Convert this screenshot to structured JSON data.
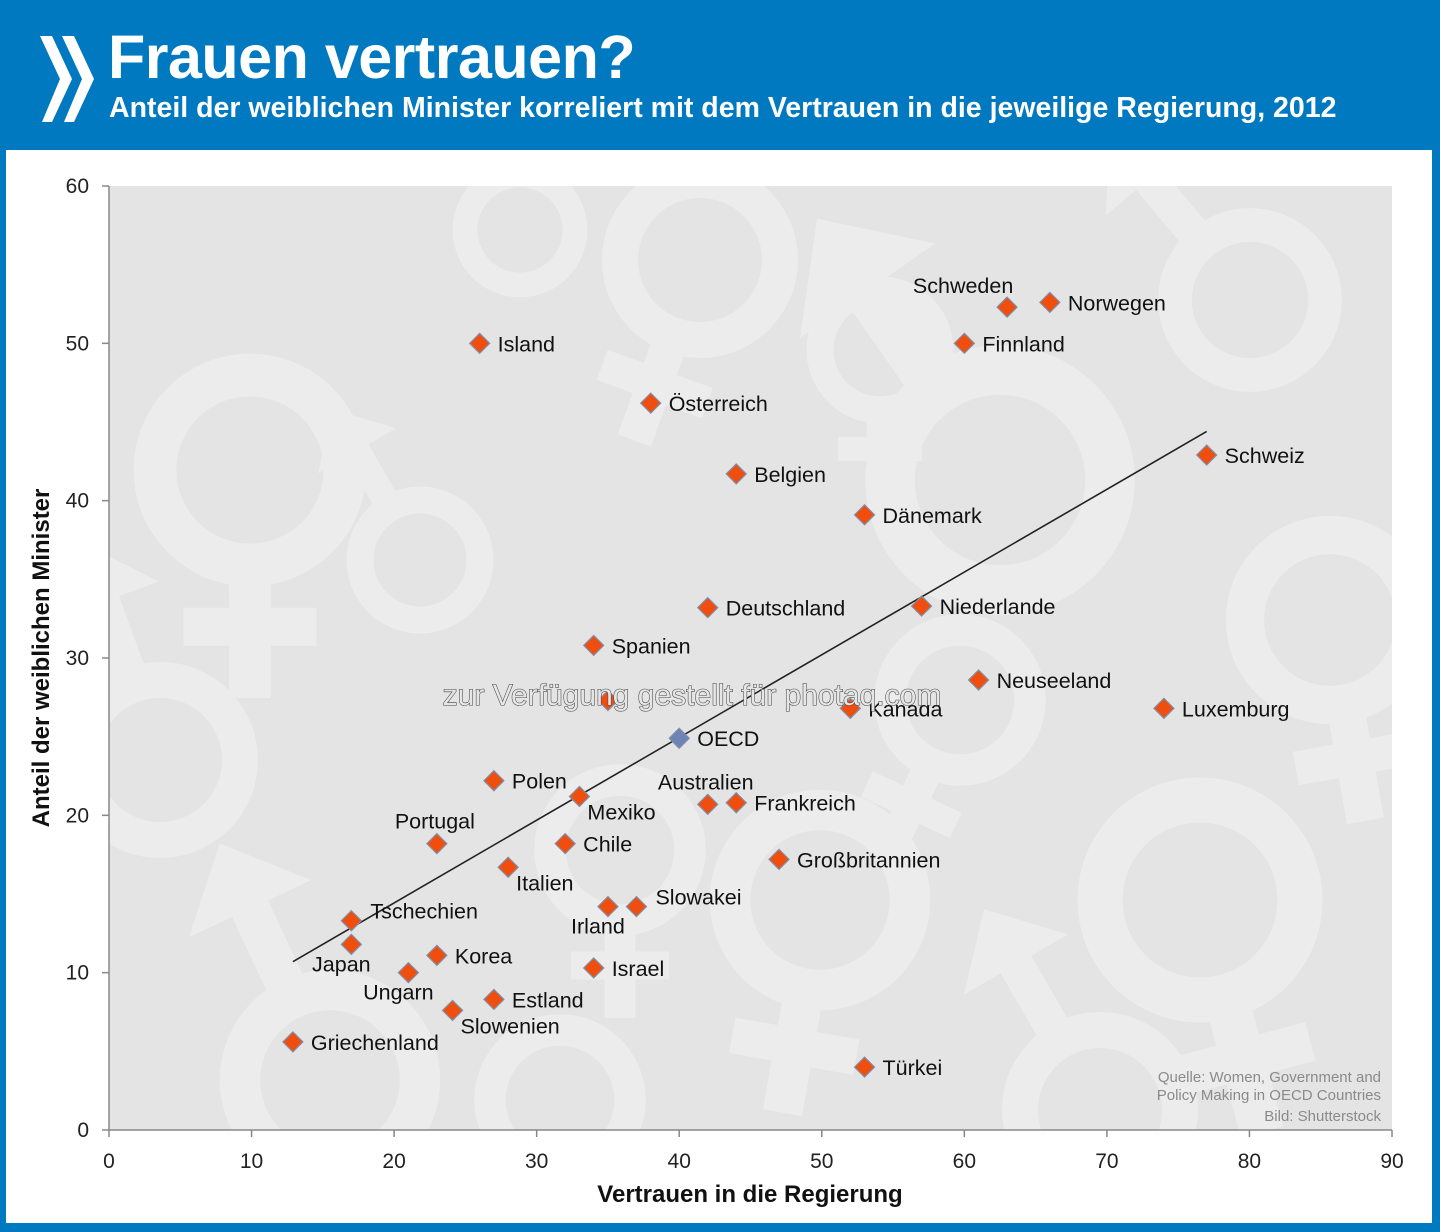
{
  "header": {
    "title": "Frauen vertrauen?",
    "subtitle": "Anteil der weiblichen Minister korreliert mit dem Vertrauen in die jeweilige Regierung, 2012",
    "logo_icon": "oecd-chevrons-icon"
  },
  "colors": {
    "header_bg": "#0079c1",
    "plot_bg": "#e4e4e4",
    "point_fill": "#f04e0f",
    "point_edge": "#7f8fa8",
    "oecd_point_fill": "#6d84b4",
    "trendline": "#222222"
  },
  "source": {
    "line1": "Quelle: Women, Government and",
    "line2": "Policy Making in OECD Countries",
    "line3": "Bild: Shutterstock"
  },
  "watermark": "zur Verfügung gestellt für photaq.com",
  "chart_data": {
    "type": "scatter",
    "title": "Frauen vertrauen?",
    "subtitle": "Anteil der weiblichen Minister korreliert mit dem Vertrauen in die jeweilige Regierung, 2012",
    "xlabel": "Vertrauen in die Regierung",
    "ylabel": "Anteil der weiblichen Minister",
    "xlim": [
      0,
      90
    ],
    "ylim": [
      0,
      60
    ],
    "xticks": [
      0,
      10,
      20,
      30,
      40,
      50,
      60,
      70,
      80,
      90
    ],
    "yticks": [
      0,
      10,
      20,
      30,
      40,
      50,
      60
    ],
    "grid": false,
    "legend": "none",
    "trendline": {
      "x": [
        12.9,
        77.0
      ],
      "y": [
        10.7,
        44.4
      ]
    },
    "points": [
      {
        "label": "Griechenland",
        "x": 12.9,
        "y": 5.6,
        "group": "country",
        "pos": "right"
      },
      {
        "label": "Tschechien",
        "x": 17.0,
        "y": 13.3,
        "group": "country",
        "pos": "right-up"
      },
      {
        "label": "Japan",
        "x": 17.0,
        "y": 11.8,
        "group": "country",
        "pos": "below"
      },
      {
        "label": "Ungarn",
        "x": 21.0,
        "y": 10.0,
        "group": "country",
        "pos": "below"
      },
      {
        "label": "Korea",
        "x": 23.0,
        "y": 11.1,
        "group": "country",
        "pos": "right"
      },
      {
        "label": "Slowenien",
        "x": 24.1,
        "y": 7.6,
        "group": "country",
        "pos": "below-right"
      },
      {
        "label": "Portugal",
        "x": 23.0,
        "y": 18.2,
        "group": "country",
        "pos": "above"
      },
      {
        "label": "Polen",
        "x": 27.0,
        "y": 22.2,
        "group": "country",
        "pos": "right"
      },
      {
        "label": "Estland",
        "x": 27.0,
        "y": 8.3,
        "group": "country",
        "pos": "right"
      },
      {
        "label": "Italien",
        "x": 28.0,
        "y": 16.7,
        "group": "country",
        "pos": "below-right"
      },
      {
        "label": "Island",
        "x": 26.0,
        "y": 50.0,
        "group": "country",
        "pos": "right"
      },
      {
        "label": "Chile",
        "x": 32.0,
        "y": 18.2,
        "group": "country",
        "pos": "right"
      },
      {
        "label": "Mexiko",
        "x": 33.0,
        "y": 21.2,
        "group": "country",
        "pos": "below-right"
      },
      {
        "label": "Spanien",
        "x": 34.0,
        "y": 30.8,
        "group": "country",
        "pos": "right"
      },
      {
        "label": "Israel",
        "x": 34.0,
        "y": 10.3,
        "group": "country",
        "pos": "right"
      },
      {
        "label": "Irland",
        "x": 35.0,
        "y": 14.2,
        "group": "country",
        "pos": "below"
      },
      {
        "label": "",
        "x": 35.0,
        "y": 27.3,
        "group": "country",
        "pos": "right"
      },
      {
        "label": "Slowakei",
        "x": 37.0,
        "y": 14.2,
        "group": "country",
        "pos": "right-up"
      },
      {
        "label": "Österreich",
        "x": 38.0,
        "y": 46.2,
        "group": "country",
        "pos": "right"
      },
      {
        "label": "OECD",
        "x": 40.0,
        "y": 24.9,
        "group": "oecd",
        "pos": "right"
      },
      {
        "label": "Deutschland",
        "x": 42.0,
        "y": 33.2,
        "group": "country",
        "pos": "right"
      },
      {
        "label": "Australien",
        "x": 42.0,
        "y": 20.7,
        "group": "country",
        "pos": "above"
      },
      {
        "label": "Belgien",
        "x": 44.0,
        "y": 41.7,
        "group": "country",
        "pos": "right"
      },
      {
        "label": "Frankreich",
        "x": 44.0,
        "y": 20.8,
        "group": "country",
        "pos": "right"
      },
      {
        "label": "Großbritannien",
        "x": 47.0,
        "y": 17.2,
        "group": "country",
        "pos": "right"
      },
      {
        "label": "Kanada",
        "x": 52.0,
        "y": 26.8,
        "group": "country",
        "pos": "right"
      },
      {
        "label": "Dänemark",
        "x": 53.0,
        "y": 39.1,
        "group": "country",
        "pos": "right"
      },
      {
        "label": "Türkei",
        "x": 53.0,
        "y": 4.0,
        "group": "country",
        "pos": "right"
      },
      {
        "label": "Niederlande",
        "x": 57.0,
        "y": 33.3,
        "group": "country",
        "pos": "right"
      },
      {
        "label": "Finnland",
        "x": 60.0,
        "y": 50.0,
        "group": "country",
        "pos": "right"
      },
      {
        "label": "Neuseeland",
        "x": 61.0,
        "y": 28.6,
        "group": "country",
        "pos": "right"
      },
      {
        "label": "Schweden",
        "x": 63.0,
        "y": 52.3,
        "group": "country",
        "pos": "above-left"
      },
      {
        "label": "Norwegen",
        "x": 66.0,
        "y": 52.6,
        "group": "country",
        "pos": "right"
      },
      {
        "label": "Luxemburg",
        "x": 74.0,
        "y": 26.8,
        "group": "country",
        "pos": "right"
      },
      {
        "label": "Schweiz",
        "x": 77.0,
        "y": 42.9,
        "group": "country",
        "pos": "right"
      }
    ]
  }
}
